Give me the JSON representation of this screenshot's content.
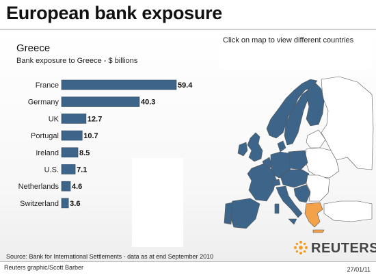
{
  "header": {
    "title": "European bank exposure"
  },
  "map": {
    "instruction": "Click on map to view different countries",
    "colors": {
      "highlight": "#f4a14b",
      "exposed": "#3d6589",
      "other": "#ffffff",
      "outline": "#555555",
      "sea": "#ffffff"
    },
    "selected_country": "Greece"
  },
  "chart_data": {
    "type": "bar",
    "orientation": "horizontal",
    "title": "Greece",
    "subtitle": "Bank exposure to Greece - $ billions",
    "categories": [
      "France",
      "Germany",
      "UK",
      "Portugal",
      "Ireland",
      "U.S.",
      "Netherlands",
      "Switzerland"
    ],
    "values": [
      59.4,
      40.3,
      12.7,
      10.7,
      8.5,
      7.1,
      4.6,
      3.6
    ],
    "value_labels": [
      "59.4",
      "40.3",
      "12.7",
      "10.7",
      "8.5",
      "7.1",
      "4.6",
      "3.6"
    ],
    "bar_color": "#3d6589",
    "grid": false,
    "legend": "none"
  },
  "footer": {
    "source": "Source: Bank for International Settlements - data as at end September 2010",
    "credit": "Reuters graphic/Scott Barber",
    "date": "27/01/11",
    "brand": "REUTERS"
  }
}
